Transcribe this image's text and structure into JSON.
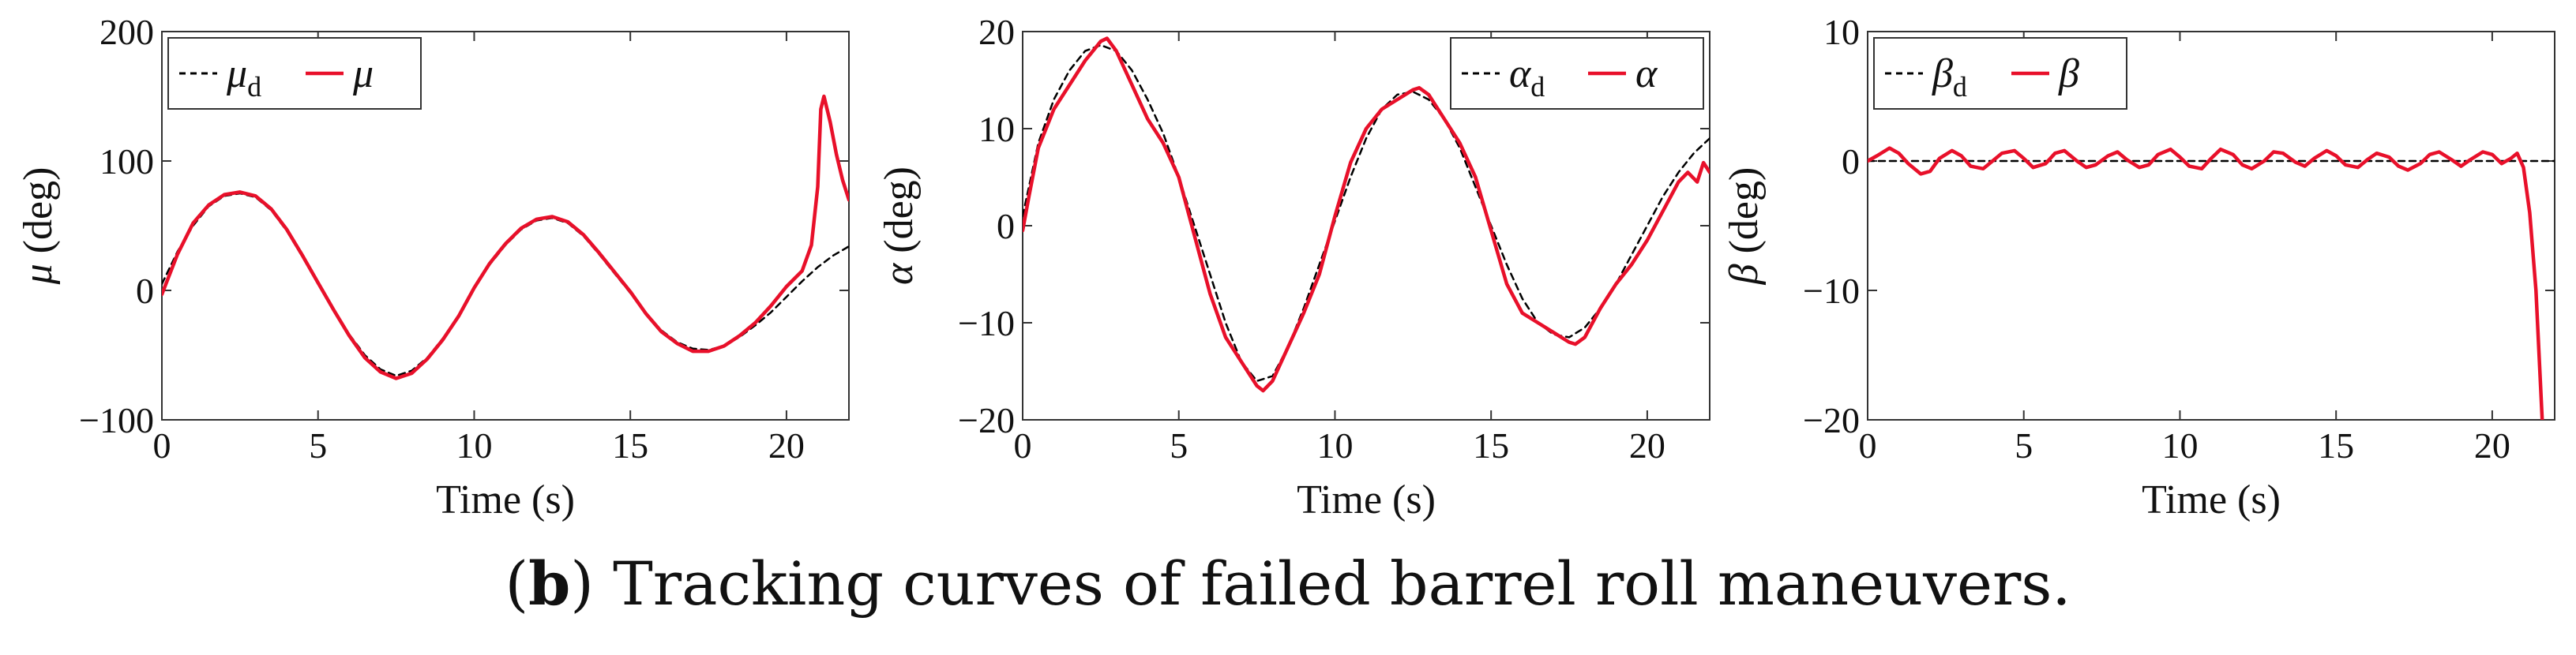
{
  "caption": {
    "label": "b",
    "text": "Tracking curves of failed barrel roll maneuvers."
  },
  "colors": {
    "desired": "#000000",
    "actual": "#e8102a",
    "axis": "#333333"
  },
  "chart_data": [
    {
      "type": "line",
      "xlabel": "Time (s)",
      "ylabel_symbol": "μ",
      "ylabel_unit": " (deg)",
      "xlim": [
        0,
        22
      ],
      "ylim": [
        -100,
        200
      ],
      "xticks": [
        0,
        5,
        10,
        15,
        20
      ],
      "yticks": [
        -100,
        0,
        100,
        200
      ],
      "ytick_labels": [
        "−100",
        "0",
        "100",
        "200"
      ],
      "legend_position": "top-left",
      "series": [
        {
          "name": "μ",
          "name_sub": "d",
          "style": "dashed",
          "x": [
            0,
            0.5,
            1,
            1.5,
            2,
            2.5,
            3,
            3.5,
            4,
            4.5,
            5,
            5.5,
            6,
            6.5,
            7,
            7.5,
            8,
            8.5,
            9,
            9.5,
            10,
            10.5,
            11,
            11.5,
            12,
            12.5,
            13,
            13.5,
            14,
            14.5,
            15,
            15.5,
            16,
            16.5,
            17,
            17.5,
            18,
            18.5,
            19,
            19.5,
            20,
            20.5,
            21,
            21.5,
            22
          ],
          "y": [
            5,
            30,
            50,
            65,
            73,
            75,
            72,
            62,
            46,
            26,
            5,
            -15,
            -34,
            -50,
            -61,
            -66,
            -62,
            -52,
            -37,
            -20,
            2,
            20,
            35,
            47,
            54,
            56,
            52,
            42,
            28,
            13,
            -2,
            -18,
            -31,
            -40,
            -45,
            -46,
            -43,
            -36,
            -27,
            -17,
            -5,
            7,
            18,
            27,
            34
          ]
        },
        {
          "name": "μ",
          "name_sub": "",
          "style": "solid",
          "x": [
            0,
            0.5,
            1,
            1.5,
            2,
            2.5,
            3,
            3.5,
            4,
            4.5,
            5,
            5.5,
            6,
            6.5,
            7,
            7.5,
            8,
            8.5,
            9,
            9.5,
            10,
            10.5,
            11,
            11.5,
            12,
            12.5,
            13,
            13.5,
            14,
            14.5,
            15,
            15.5,
            16,
            16.5,
            17,
            17.5,
            18,
            18.5,
            19,
            19.5,
            20,
            20.5,
            20.8,
            21,
            21.1,
            21.2,
            21.4,
            21.6,
            21.8,
            22
          ],
          "y": [
            -3,
            28,
            52,
            66,
            74,
            76,
            73,
            63,
            47,
            27,
            6,
            -15,
            -35,
            -52,
            -63,
            -68,
            -64,
            -53,
            -38,
            -20,
            2,
            21,
            36,
            48,
            55,
            57,
            53,
            43,
            29,
            14,
            -1,
            -18,
            -32,
            -41,
            -47,
            -47,
            -43,
            -35,
            -25,
            -12,
            3,
            15,
            35,
            80,
            140,
            150,
            130,
            105,
            85,
            70
          ]
        }
      ]
    },
    {
      "type": "line",
      "xlabel": "Time (s)",
      "ylabel_symbol": "α",
      "ylabel_unit": " (deg)",
      "xlim": [
        0,
        22
      ],
      "ylim": [
        -20,
        20
      ],
      "xticks": [
        0,
        5,
        10,
        15,
        20
      ],
      "yticks": [
        -20,
        -10,
        0,
        10,
        20
      ],
      "ytick_labels": [
        "−20",
        "−10",
        "0",
        "10",
        "20"
      ],
      "legend_position": "top-right",
      "series": [
        {
          "name": "α",
          "name_sub": "d",
          "style": "dashed",
          "x": [
            0,
            0.5,
            1,
            1.5,
            2,
            2.5,
            3,
            3.5,
            4,
            4.5,
            5,
            5.5,
            6,
            6.5,
            7,
            7.5,
            8,
            8.5,
            9,
            9.5,
            10,
            10.5,
            11,
            11.5,
            12,
            12.5,
            13,
            13.5,
            14,
            14.5,
            15,
            15.5,
            16,
            16.5,
            17,
            17.5,
            18,
            18.5,
            19,
            19.5,
            20,
            20.5,
            21,
            21.5,
            22
          ],
          "y": [
            1,
            8.5,
            13,
            16,
            18,
            18.6,
            18,
            16,
            13,
            9.5,
            5,
            0,
            -5,
            -10,
            -14,
            -16,
            -15.5,
            -12.5,
            -8.5,
            -4,
            0.5,
            5,
            9,
            12,
            13.5,
            13.8,
            13,
            11,
            8,
            4,
            0,
            -4,
            -7.5,
            -10,
            -11.2,
            -11.5,
            -10.5,
            -8.5,
            -6,
            -3,
            0,
            3,
            5.5,
            7.5,
            9
          ]
        },
        {
          "name": "α",
          "name_sub": "",
          "style": "solid",
          "x": [
            0,
            0.2,
            0.5,
            1,
            1.5,
            2,
            2.5,
            2.7,
            3,
            3.5,
            4,
            4.5,
            5,
            5.5,
            6,
            6.5,
            7,
            7.5,
            7.7,
            8,
            8.5,
            9,
            9.5,
            10,
            10.5,
            11,
            11.5,
            12,
            12.5,
            12.7,
            13,
            13.5,
            14,
            14.5,
            15,
            15.5,
            16,
            16.5,
            17,
            17.5,
            17.7,
            18,
            18.5,
            19,
            19.5,
            20,
            20.5,
            21,
            21.3,
            21.6,
            21.8,
            22
          ],
          "y": [
            -0.5,
            3,
            8,
            12,
            14.5,
            17,
            19,
            19.3,
            18,
            14.5,
            11,
            8.5,
            5,
            -1,
            -7,
            -11.5,
            -14,
            -16.5,
            -17,
            -16,
            -12.5,
            -9,
            -5,
            1,
            6.5,
            10,
            12,
            13,
            14,
            14.2,
            13.5,
            11,
            8.5,
            5,
            -0.5,
            -6,
            -9,
            -10,
            -11,
            -12,
            -12.2,
            -11.5,
            -8.5,
            -6,
            -4,
            -1.5,
            1.5,
            4.5,
            5.5,
            4.5,
            6.5,
            5.5
          ]
        }
      ]
    },
    {
      "type": "line",
      "xlabel": "Time (s)",
      "ylabel_symbol": "β",
      "ylabel_unit": " (deg)",
      "xlim": [
        0,
        22
      ],
      "ylim": [
        -20,
        10
      ],
      "xticks": [
        0,
        5,
        10,
        15,
        20
      ],
      "yticks": [
        -20,
        -10,
        0,
        10
      ],
      "ytick_labels": [
        "−20",
        "−10",
        "0",
        "10"
      ],
      "legend_position": "top-left",
      "series": [
        {
          "name": "β",
          "name_sub": "d",
          "style": "dashed",
          "x": [
            0,
            22
          ],
          "y": [
            0,
            0
          ]
        },
        {
          "name": "β",
          "name_sub": "",
          "style": "solid",
          "x": [
            0,
            0.3,
            0.7,
            1,
            1.3,
            1.7,
            2,
            2.3,
            2.7,
            3,
            3.3,
            3.7,
            4,
            4.3,
            4.7,
            5,
            5.3,
            5.7,
            6,
            6.3,
            6.7,
            7,
            7.3,
            7.7,
            8,
            8.3,
            8.7,
            9,
            9.3,
            9.7,
            10,
            10.3,
            10.7,
            11,
            11.3,
            11.7,
            12,
            12.3,
            12.7,
            13,
            13.3,
            13.7,
            14,
            14.3,
            14.7,
            15,
            15.3,
            15.7,
            16,
            16.3,
            16.7,
            17,
            17.3,
            17.7,
            18,
            18.3,
            18.7,
            19,
            19.3,
            19.7,
            20,
            20.3,
            20.6,
            20.8,
            21,
            21.2,
            21.4,
            21.6
          ],
          "y": [
            0,
            0.4,
            1.0,
            0.6,
            -0.2,
            -1.0,
            -0.8,
            0.2,
            0.8,
            0.4,
            -0.4,
            -0.6,
            0.0,
            0.6,
            0.8,
            0.2,
            -0.5,
            -0.2,
            0.6,
            0.8,
            0.0,
            -0.5,
            -0.3,
            0.4,
            0.7,
            0.1,
            -0.5,
            -0.3,
            0.5,
            0.9,
            0.3,
            -0.4,
            -0.6,
            0.2,
            0.9,
            0.5,
            -0.3,
            -0.6,
            0.0,
            0.7,
            0.6,
            -0.1,
            -0.4,
            0.2,
            0.8,
            0.4,
            -0.3,
            -0.5,
            0.1,
            0.6,
            0.3,
            -0.4,
            -0.7,
            -0.2,
            0.5,
            0.7,
            0.1,
            -0.4,
            0.1,
            0.7,
            0.5,
            -0.2,
            0.2,
            0.6,
            -0.5,
            -4,
            -10,
            -20
          ]
        }
      ]
    }
  ]
}
